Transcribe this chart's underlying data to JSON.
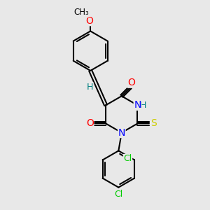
{
  "bg_color": "#e8e8e8",
  "bond_color": "#000000",
  "bond_width": 1.5,
  "atom_colors": {
    "O": "#ff0000",
    "N": "#0000ff",
    "S": "#cccc00",
    "Cl": "#00cc00",
    "H": "#008080",
    "C": "#000000"
  },
  "font_size": 9,
  "fig_width": 3.0,
  "fig_height": 3.0
}
